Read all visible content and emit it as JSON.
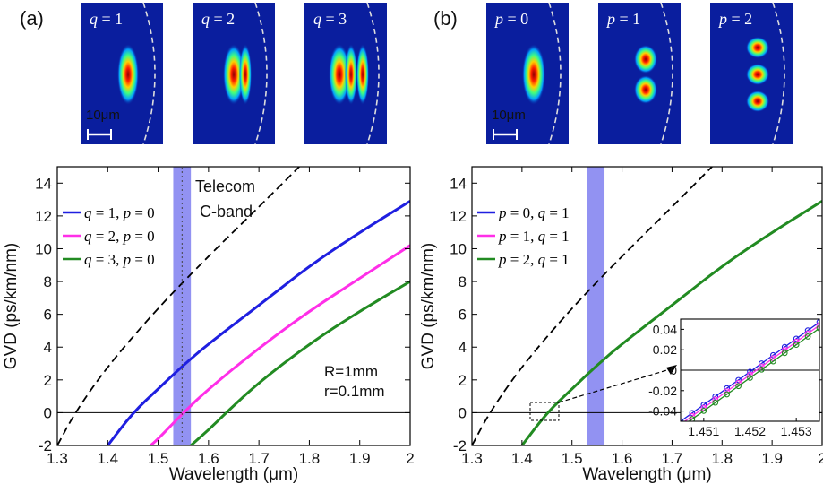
{
  "colors": {
    "q1": "#1f1fe0",
    "q2": "#ff2fe8",
    "q3": "#228b22",
    "band": "#7f7ff0",
    "dashed": "#000000",
    "mode_bg": "#0a1e9e"
  },
  "panel_a": {
    "label": "(a)",
    "modes": [
      {
        "var": "q",
        "eq": " = 1",
        "lobes": 1,
        "orient": "h"
      },
      {
        "var": "q",
        "eq": " = 2",
        "lobes": 2,
        "orient": "h"
      },
      {
        "var": "q",
        "eq": " = 3",
        "lobes": 3,
        "orient": "h"
      }
    ],
    "scalebar_label": "10μm"
  },
  "panel_b": {
    "label": "(b)",
    "modes": [
      {
        "var": "p",
        "eq": " = 0",
        "lobes": 1,
        "orient": "v"
      },
      {
        "var": "p",
        "eq": " = 1",
        "lobes": 2,
        "orient": "v"
      },
      {
        "var": "p",
        "eq": " = 2",
        "lobes": 3,
        "orient": "v"
      }
    ],
    "scalebar_label": "10μm"
  },
  "chart_data": [
    {
      "type": "line",
      "panel": "a",
      "xlabel": "Wavelength (μm)",
      "ylabel": "GVD (ps/km/nm)",
      "xlim": [
        1.3,
        2.0
      ],
      "ylim": [
        -2,
        15
      ],
      "xticks": [
        "1.3",
        "1.4",
        "1.5",
        "1.6",
        "1.7",
        "1.8",
        "1.9",
        "2"
      ],
      "yticks": [
        "-2",
        "0",
        "2",
        "4",
        "6",
        "8",
        "10",
        "12",
        "14"
      ],
      "band": [
        1.53,
        1.565
      ],
      "band_label": [
        "Telecom",
        "C-band"
      ],
      "annotation": [
        "R=1mm",
        "r=0.1mm"
      ],
      "legend": [
        {
          "q": "q",
          "qv": " = 1, ",
          "p": "p",
          "pv": " = 0"
        },
        {
          "q": "q",
          "qv": " = 2, ",
          "p": "p",
          "pv": " = 0"
        },
        {
          "q": "q",
          "qv": " = 3, ",
          "p": "p",
          "pv": " = 0"
        }
      ],
      "series": [
        {
          "color": "q1",
          "x": [
            1.4,
            1.45,
            1.5,
            1.55,
            1.6,
            1.7,
            1.8,
            1.9,
            2.0
          ],
          "y": [
            -2,
            0.0,
            1.45,
            2.9,
            4.2,
            6.55,
            8.95,
            11.0,
            12.9
          ]
        },
        {
          "color": "q2",
          "x": [
            1.485,
            1.5,
            1.55,
            1.6,
            1.7,
            1.8,
            1.9,
            2.0
          ],
          "y": [
            -2,
            -1.6,
            0.0,
            1.45,
            3.95,
            6.2,
            8.2,
            10.2
          ]
        },
        {
          "color": "q3",
          "x": [
            1.565,
            1.6,
            1.635,
            1.7,
            1.8,
            1.9,
            2.0
          ],
          "y": [
            -2,
            -1.05,
            0.0,
            1.85,
            4.2,
            6.2,
            8.0
          ]
        },
        {
          "color": "dashed",
          "dash": true,
          "x": [
            1.3,
            1.335,
            1.4,
            1.5,
            1.6,
            1.7,
            1.78
          ],
          "y": [
            -2,
            0.0,
            2.85,
            6.4,
            9.55,
            12.55,
            15.0
          ]
        }
      ]
    },
    {
      "type": "line",
      "panel": "b",
      "xlabel": "Wavelength (μm)",
      "ylabel": "GVD (ps/km/nm)",
      "xlim": [
        1.3,
        2.0
      ],
      "ylim": [
        -2,
        15
      ],
      "xticks": [
        "1.3",
        "1.4",
        "1.5",
        "1.6",
        "1.7",
        "1.8",
        "1.9",
        "2"
      ],
      "yticks": [
        "-2",
        "0",
        "2",
        "4",
        "6",
        "8",
        "10",
        "12",
        "14"
      ],
      "band": [
        1.53,
        1.565
      ],
      "legend": [
        {
          "q": "p",
          "qv": " = 0, ",
          "p": "q",
          "pv": " = 1"
        },
        {
          "q": "p",
          "qv": " = 1, ",
          "p": "q",
          "pv": " = 1"
        },
        {
          "q": "p",
          "qv": " = 2, ",
          "p": "q",
          "pv": " = 1"
        }
      ],
      "series": [
        {
          "color": "q3",
          "x": [
            1.4,
            1.45,
            1.5,
            1.55,
            1.6,
            1.7,
            1.8,
            1.9,
            2.0
          ],
          "y": [
            -2,
            0.0,
            1.45,
            2.9,
            4.2,
            6.55,
            8.95,
            11.0,
            12.9
          ]
        },
        {
          "color": "dashed",
          "dash": true,
          "x": [
            1.3,
            1.335,
            1.4,
            1.5,
            1.6,
            1.7,
            1.78
          ],
          "y": [
            -2,
            0.0,
            2.85,
            6.4,
            9.55,
            12.55,
            15.0
          ]
        }
      ],
      "inset": {
        "xlim": [
          1.4505,
          1.4535
        ],
        "ylim": [
          -0.05,
          0.05
        ],
        "xticks": [
          "1.451",
          "1.452",
          "1.453"
        ],
        "yticks": [
          "0.04",
          "0.02",
          "0",
          "-0.02",
          "-0.04"
        ],
        "series": [
          {
            "color": "q1",
            "x": [
              1.4505,
              1.4535
            ],
            "y": [
              -0.05,
              0.047
            ]
          },
          {
            "color": "q2",
            "x": [
              1.4505,
              1.4535
            ],
            "y": [
              -0.053,
              0.044
            ]
          },
          {
            "color": "q3",
            "x": [
              1.4505,
              1.4535
            ],
            "y": [
              -0.056,
              0.041
            ]
          }
        ]
      }
    }
  ]
}
